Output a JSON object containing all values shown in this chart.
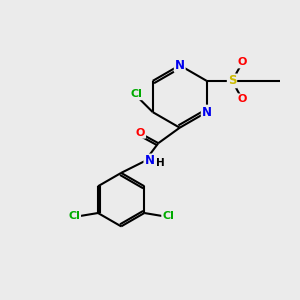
{
  "background_color": "#ebebeb",
  "atom_colors": {
    "C": "#000000",
    "N": "#0000ee",
    "O": "#ff0000",
    "Cl": "#00aa00",
    "S": "#ccbb00",
    "H": "#000000"
  },
  "bond_color": "#000000",
  "bond_width": 1.5,
  "font_size": 8.5
}
